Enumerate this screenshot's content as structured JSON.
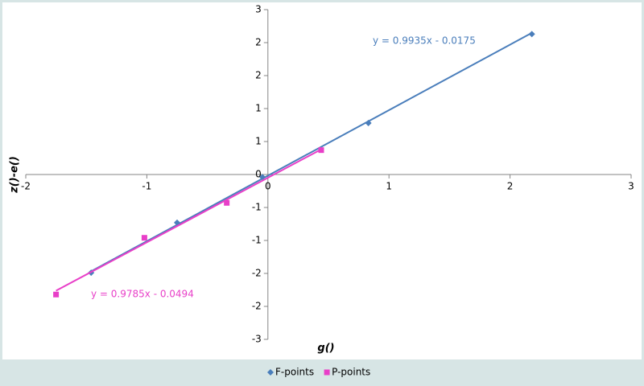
{
  "chart_data": {
    "type": "scatter",
    "x_label": "g()",
    "y_label": "z()-e()",
    "xlim": [
      -2,
      3
    ],
    "xticks": [
      -2,
      -1,
      0,
      1,
      2,
      3
    ],
    "ylim": [
      -2.5,
      2.5
    ],
    "yticks": [
      {
        "value": 2.5,
        "label": "3"
      },
      {
        "value": 2,
        "label": "2"
      },
      {
        "value": 1.5,
        "label": "2"
      },
      {
        "value": 1,
        "label": "1"
      },
      {
        "value": 0.5,
        "label": "1"
      },
      {
        "value": 0,
        "label": "0"
      },
      {
        "value": -0.5,
        "label": "-1"
      },
      {
        "value": -1,
        "label": "-1"
      },
      {
        "value": -1.5,
        "label": "-2"
      },
      {
        "value": -2,
        "label": "-2"
      },
      {
        "value": -2.5,
        "label": "-3"
      }
    ],
    "grid": false,
    "legend": "bottom",
    "series": [
      {
        "name": "F-points",
        "color": "#4a7ebb",
        "marker": "diamond",
        "x": [
          -1.46,
          -0.75,
          -0.045,
          0.83,
          2.18
        ],
        "values": [
          -1.49,
          -0.73,
          -0.04,
          0.78,
          2.13
        ],
        "trendline": {
          "slope": 0.9935,
          "intercept": -0.0175,
          "label": "y = 0.9935x - 0.0175"
        }
      },
      {
        "name": "P-points",
        "color": "#e83fc8",
        "marker": "square",
        "x": [
          -1.75,
          -1.02,
          -0.34,
          0.44
        ],
        "values": [
          -1.82,
          -0.96,
          -0.43,
          0.37
        ],
        "trendline": {
          "slope": 0.9785,
          "intercept": -0.0494,
          "label": "y = 0.9785x - 0.0494"
        }
      }
    ]
  }
}
